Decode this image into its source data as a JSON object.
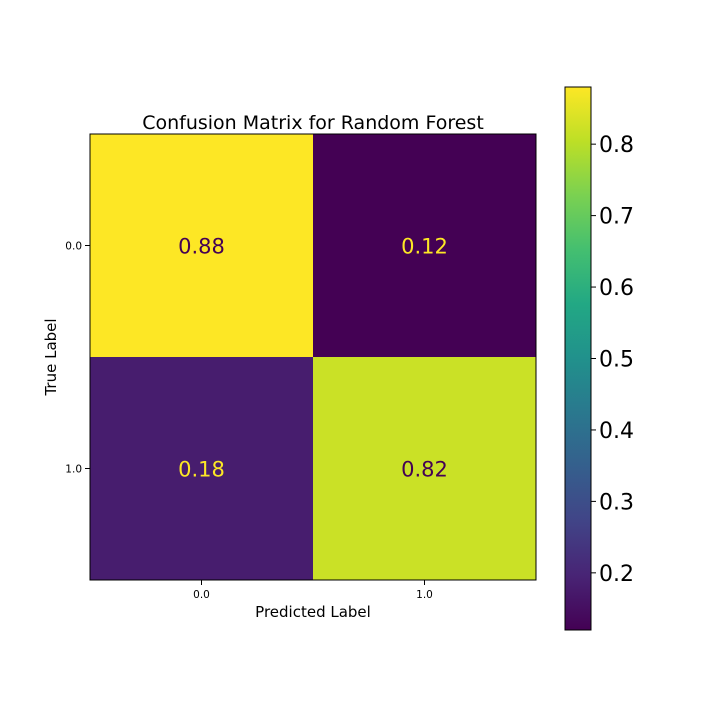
{
  "chart_data": {
    "type": "heatmap",
    "title": "Confusion Matrix for Random Forest",
    "xlabel": "Predicted Label",
    "ylabel": "True Label",
    "x_categories": [
      "0.0",
      "1.0"
    ],
    "y_categories": [
      "0.0",
      "1.0"
    ],
    "matrix": [
      [
        0.88,
        0.12
      ],
      [
        0.18,
        0.82
      ]
    ],
    "cell_labels": [
      [
        "0.88",
        "0.12"
      ],
      [
        "0.18",
        "0.82"
      ]
    ],
    "colormap": "viridis",
    "colorbar": {
      "range": [
        0.12,
        0.88
      ],
      "ticks": [
        0.2,
        0.3,
        0.4,
        0.5,
        0.6,
        0.7,
        0.8
      ],
      "tick_labels": [
        "0.2",
        "0.3",
        "0.4",
        "0.5",
        "0.6",
        "0.7",
        "0.8"
      ]
    },
    "colors": {
      "low_text": "#fde725",
      "high_text": "#440154"
    }
  }
}
